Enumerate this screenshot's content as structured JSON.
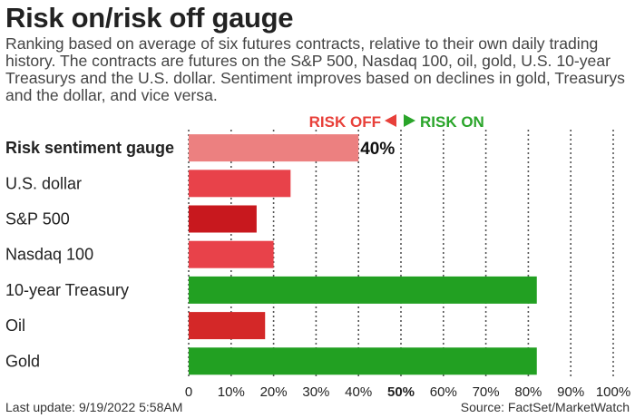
{
  "title": "Risk on/risk off gauge",
  "subtitle": "Ranking based on average of six futures contracts, relative to their own daily trading history. The contracts are futures on the S&P 500, Nasdaq 100, oil, gold, U.S. 10-year Treasurys and the U.S. dollar. Sentiment improves based on declines in gold, Treasurys and the dollar, and vice versa.",
  "legend": {
    "risk_off": "RISK OFF",
    "risk_on": "RISK ON",
    "risk_off_color": "#e8403a",
    "risk_on_color": "#2aa52a"
  },
  "footer": {
    "last_update": "Last update: 9/19/2022 5:58AM",
    "source": "Source: FactSet/MarketWatch"
  },
  "chart_data": {
    "type": "bar",
    "orientation": "horizontal",
    "categories": [
      "Risk sentiment gauge",
      "U.S. dollar",
      "S&P 500",
      "Nasdaq 100",
      "10-year Treasury",
      "Oil",
      "Gold"
    ],
    "values": [
      40,
      24,
      16,
      20,
      82,
      18,
      82
    ],
    "colors": [
      "#ec8080",
      "#e8424a",
      "#c8181e",
      "#e8424a",
      "#22a022",
      "#d42828",
      "#22a022"
    ],
    "data_labels": [
      "40%",
      "",
      "",
      "",
      "",
      "",
      ""
    ],
    "bold_categories": [
      "Risk sentiment gauge"
    ],
    "xlim": [
      0,
      100
    ],
    "xticks": [
      "0",
      "10%",
      "20%",
      "30%",
      "40%",
      "50%",
      "60%",
      "70%",
      "80%",
      "90%",
      "100%"
    ],
    "bold_xtick": "50%",
    "grid": "vertical dotted",
    "xlabel": "",
    "ylabel": ""
  }
}
